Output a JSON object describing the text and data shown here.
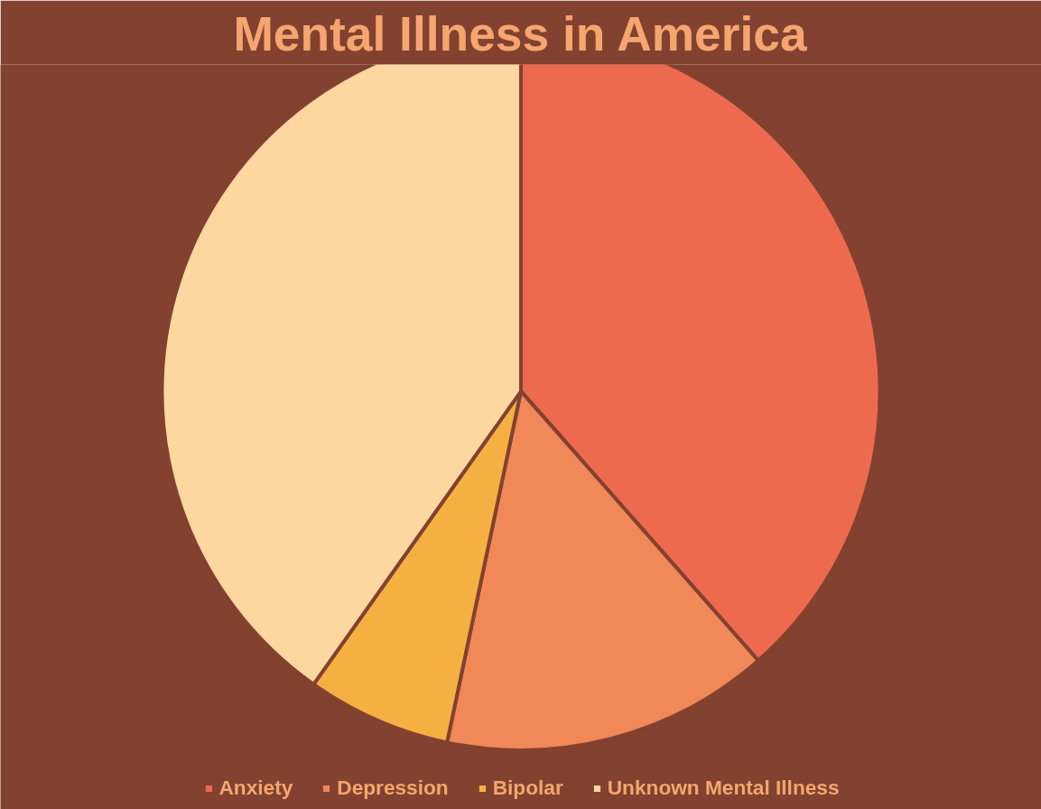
{
  "chart_data": {
    "type": "pie",
    "title": "Mental Illness in America",
    "categories": [
      "Anxiety",
      "Depression",
      "Bipolar",
      "Unknown Mental Illness"
    ],
    "values": [
      38.5,
      14.8,
      6.5,
      40.2
    ],
    "colors": [
      "#ee6a4f",
      "#f08858",
      "#f5b042",
      "#fed7a0"
    ],
    "legend": "bottom"
  }
}
